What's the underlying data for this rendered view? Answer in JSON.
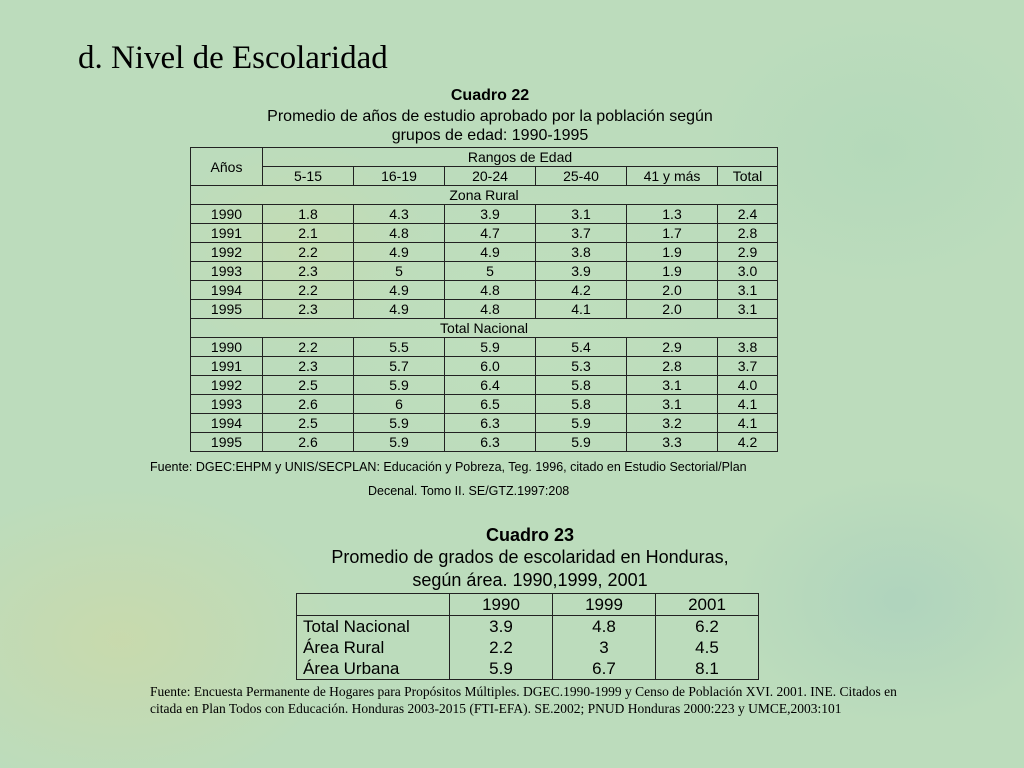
{
  "slide_title": "d. Nivel de Escolaridad",
  "cuadro22": {
    "label": "Cuadro 22",
    "subtitle_line1": "Promedio de años de estudio aprobado por la población según",
    "subtitle_line2": "grupos de edad: 1990-1995",
    "years_header": "Años",
    "ranges_header": "Rangos de Edad",
    "columns": [
      "5-15",
      "16-19",
      "20-24",
      "25-40",
      "41 y más",
      "Total"
    ],
    "sections": [
      {
        "name": "Zona Rural",
        "rows": [
          [
            "1990",
            "1.8",
            "4.3",
            "3.9",
            "3.1",
            "1.3",
            "2.4"
          ],
          [
            "1991",
            "2.1",
            "4.8",
            "4.7",
            "3.7",
            "1.7",
            "2.8"
          ],
          [
            "1992",
            "2.2",
            "4.9",
            "4.9",
            "3.8",
            "1.9",
            "2.9"
          ],
          [
            "1993",
            "2.3",
            "5",
            "5",
            "3.9",
            "1.9",
            "3.0"
          ],
          [
            "1994",
            "2.2",
            "4.9",
            "4.8",
            "4.2",
            "2.0",
            "3.1"
          ],
          [
            "1995",
            "2.3",
            "4.9",
            "4.8",
            "4.1",
            "2.0",
            "3.1"
          ]
        ]
      },
      {
        "name": "Total Nacional",
        "rows": [
          [
            "1990",
            "2.2",
            "5.5",
            "5.9",
            "5.4",
            "2.9",
            "3.8"
          ],
          [
            "1991",
            "2.3",
            "5.7",
            "6.0",
            "5.3",
            "2.8",
            "3.7"
          ],
          [
            "1992",
            "2.5",
            "5.9",
            "6.4",
            "5.8",
            "3.1",
            "4.0"
          ],
          [
            "1993",
            "2.6",
            "6",
            "6.5",
            "5.8",
            "3.1",
            "4.1"
          ],
          [
            "1994",
            "2.5",
            "5.9",
            "6.3",
            "5.9",
            "3.2",
            "4.1"
          ],
          [
            "1995",
            "2.6",
            "5.9",
            "6.3",
            "5.9",
            "3.3",
            "4.2"
          ]
        ]
      }
    ],
    "source_line1": "Fuente: DGEC:EHPM y UNIS/SECPLAN: Educación y Pobreza, Teg. 1996, citado en Estudio Sectorial/Plan",
    "source_line2": "Decenal. Tomo II. SE/GTZ.1997:208"
  },
  "cuadro23": {
    "label": "Cuadro 23",
    "subtitle_line1": "Promedio de grados de escolaridad en Honduras,",
    "subtitle_line2": "según área. 1990,1999, 2001",
    "years": [
      "1990",
      "1999",
      "2001"
    ],
    "rows": [
      {
        "label": "Total Nacional",
        "values": [
          "3.9",
          "4.8",
          "6.2"
        ]
      },
      {
        "label": "Área Rural",
        "values": [
          "2.2",
          "3",
          "4.5"
        ]
      },
      {
        "label": "Área Urbana",
        "values": [
          "5.9",
          "6.7",
          "8.1"
        ]
      }
    ],
    "source": "Fuente: Encuesta Permanente de Hogares para Propósitos Múltiples. DGEC.1990-1999 y  Censo de Población XVI. 2001. INE. Citados en citada en Plan Todos con Educación. Honduras 2003-2015 (FTI-EFA). SE.2002; PNUD Honduras 2000:223 y UMCE,2003:101"
  }
}
